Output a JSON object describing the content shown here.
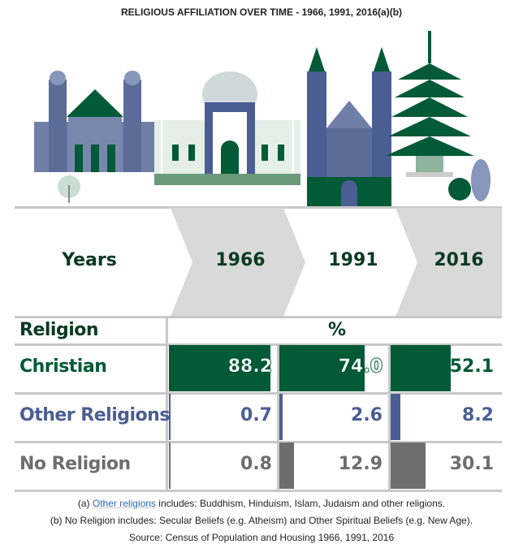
{
  "title": "RELIGIOUS AFFILIATION OVER TIME - 1966, 1991, 2016(a)(b)",
  "colors": {
    "christian": "#035a37",
    "other": "#4a5e93",
    "none": "#6e6e6e",
    "chevron": "#d9d9d9",
    "header_text": "#0a3a22"
  },
  "chart_data": {
    "type": "table",
    "title": "RELIGIOUS AFFILIATION OVER TIME - 1966, 1991, 2016(a)(b)",
    "header_label": "Years",
    "categories": [
      "1966",
      "1991",
      "2016"
    ],
    "row_header": "Religion",
    "unit_header": "%",
    "series": [
      {
        "name": "Christian",
        "values": [
          "88.2",
          "74.0",
          "52.1"
        ]
      },
      {
        "name": "Other Religions",
        "values": [
          "0.7",
          "2.6",
          "8.2"
        ]
      },
      {
        "name": "No Religion",
        "values": [
          "0.8",
          "12.9",
          "30.1"
        ]
      }
    ]
  },
  "footnotes": {
    "a_prefix": "(a) ",
    "a_link": "Other religions",
    "a_rest": " includes: Buddhism, Hinduism, Islam, Judaism and other religions.",
    "b": "(b) No Religion includes: Secular Beliefs (e.g. Atheism) and Other Spiritual Beliefs (e.g. New Age).",
    "source": "Source: Census of Population and Housing 1966, 1991, 2016"
  }
}
